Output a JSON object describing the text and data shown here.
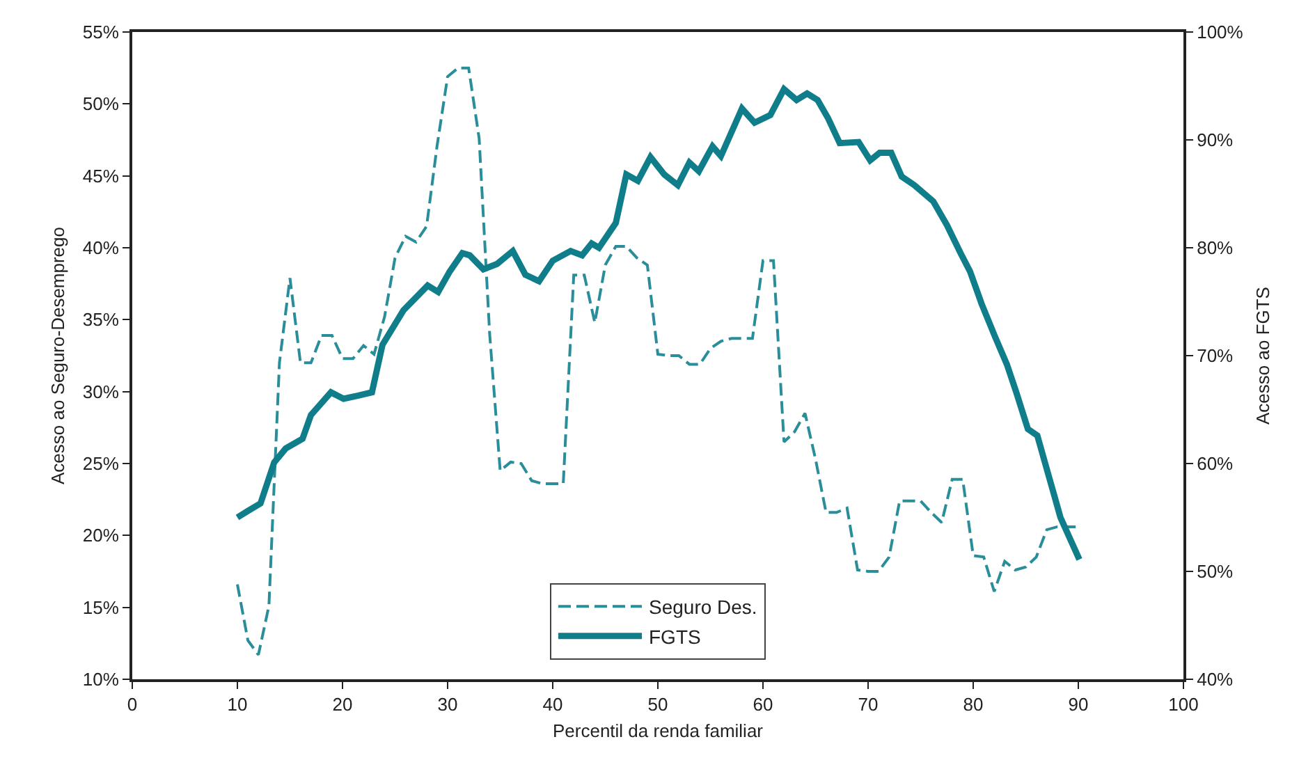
{
  "chart_data": {
    "type": "line",
    "xlabel": "Percentil da renda familiar",
    "ylabel": "Acesso ao Seguro-Desemprego",
    "y2label": "Acesso ao FGTS",
    "xlim": [
      0,
      100
    ],
    "xticks": [
      0,
      10,
      20,
      30,
      40,
      50,
      60,
      70,
      80,
      90,
      100
    ],
    "ylim": [
      10,
      55
    ],
    "yticks": [
      {
        "value": 10,
        "label": "10%"
      },
      {
        "value": 15,
        "label": "15%"
      },
      {
        "value": 20,
        "label": "20%"
      },
      {
        "value": 25,
        "label": "25%"
      },
      {
        "value": 30,
        "label": "30%"
      },
      {
        "value": 35,
        "label": "35%"
      },
      {
        "value": 40,
        "label": "40%"
      },
      {
        "value": 45,
        "label": "45%"
      },
      {
        "value": 50,
        "label": "50%"
      },
      {
        "value": 55,
        "label": "55%"
      }
    ],
    "y2lim": [
      40,
      100
    ],
    "y2ticks": [
      {
        "value": 40,
        "label": "40%"
      },
      {
        "value": 50,
        "label": "50%"
      },
      {
        "value": 60,
        "label": "60%"
      },
      {
        "value": 70,
        "label": "70%"
      },
      {
        "value": 80,
        "label": "80%"
      },
      {
        "value": 90,
        "label": "90%"
      },
      {
        "value": 100,
        "label": "100%"
      }
    ],
    "grid": false,
    "legend": "bottom",
    "marker": "none",
    "series": [
      {
        "name": "Seguro Des.",
        "color": "#2a8e9a",
        "line_style": "dashed",
        "x": [
          10,
          11,
          12,
          13,
          14,
          15,
          16,
          17,
          18,
          19,
          20,
          21,
          22,
          23,
          24,
          25,
          26,
          27,
          28,
          29,
          30,
          31,
          32,
          33,
          34,
          35,
          36,
          37,
          38,
          39,
          40,
          41,
          42,
          43,
          44,
          45,
          46,
          47,
          48,
          49,
          50,
          51,
          52,
          53,
          54,
          55,
          56,
          57,
          58,
          59,
          60,
          61,
          62,
          63,
          64,
          65,
          66,
          67,
          68,
          69,
          70,
          71,
          72,
          73,
          74,
          75,
          76,
          77,
          78,
          79,
          80,
          81,
          82,
          83,
          84,
          85,
          86,
          87,
          88,
          89,
          90
        ],
        "values": [
          16.6,
          12.7,
          11.7,
          15.1,
          32,
          37.9,
          32,
          32,
          33.9,
          33.9,
          32.3,
          32.3,
          33.2,
          32.6,
          35.2,
          39.3,
          40.8,
          40.4,
          41.5,
          47.1,
          51.9,
          52.5,
          52.5,
          47.6,
          34,
          24.5,
          25.1,
          25,
          23.8,
          23.6,
          23.6,
          23.6,
          38.1,
          38.1,
          34.8,
          38.8,
          40.1,
          40.1,
          39.3,
          38.8,
          32.6,
          32.5,
          32.5,
          31.9,
          31.9,
          33,
          33.5,
          33.7,
          33.7,
          33.7,
          39.1,
          39.1,
          26.5,
          27.2,
          28.5,
          25.3,
          21.6,
          21.6,
          21.9,
          17.6,
          17.5,
          17.5,
          18.5,
          22.4,
          22.4,
          22.4,
          21.6,
          20.9,
          23.9,
          23.9,
          18.6,
          18.5,
          16.1,
          18.2,
          17.6,
          17.8,
          18.5,
          20.4,
          20.6,
          20.6,
          20.6
        ]
      },
      {
        "name": "FGTS",
        "color": "#0f7d8a",
        "line_style": "solid",
        "axis": "y2",
        "x": [
          10,
          11,
          12.2,
          13.5,
          14.6,
          16.2,
          17,
          18.9,
          20.1,
          21.5,
          22.8,
          23.8,
          25.8,
          28.1,
          29.1,
          30.2,
          31.4,
          32.1,
          33.4,
          34.7,
          36.2,
          37.4,
          38.7,
          40,
          41.7,
          42.8,
          43.7,
          44.4,
          46,
          47,
          48.1,
          49.3,
          50.6,
          51.9,
          53,
          53.9,
          55.2,
          56,
          58,
          59.2,
          60.7,
          62,
          63.2,
          64.2,
          65.2,
          66.2,
          67.3,
          69.1,
          70.2,
          71.1,
          72.2,
          73.2,
          74.4,
          76.2,
          77.5,
          78.8,
          79.7,
          80.8,
          82.1,
          83.2,
          84.1,
          85.2,
          86.1,
          87.2,
          88.3,
          90.1
        ],
        "values": [
          55,
          55.6,
          56.3,
          60.1,
          61.4,
          62.3,
          64.5,
          66.6,
          66,
          66.3,
          66.6,
          71,
          74.2,
          76.5,
          75.9,
          77.8,
          79.5,
          79.3,
          78,
          78.5,
          79.7,
          77.5,
          76.9,
          78.8,
          79.7,
          79.3,
          80.4,
          80,
          82.3,
          86.8,
          86.2,
          88.4,
          86.8,
          85.8,
          87.9,
          87.1,
          89.4,
          88.5,
          92.9,
          91.6,
          92.3,
          94.7,
          93.7,
          94.3,
          93.7,
          92,
          89.7,
          89.8,
          88.1,
          88.8,
          88.8,
          86.6,
          85.8,
          84.3,
          82.1,
          79.5,
          77.8,
          74.8,
          71.7,
          69.2,
          66.6,
          63.2,
          62.6,
          58.8,
          55,
          51.1
        ]
      }
    ]
  }
}
